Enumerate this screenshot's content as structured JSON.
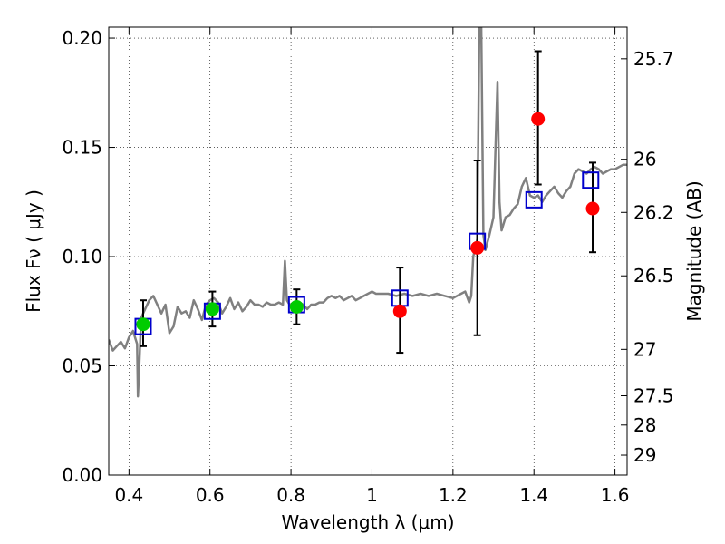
{
  "chart_data": {
    "type": "scatter",
    "xlabel": "Wavelength  λ (μm)",
    "ylabel": "Flux  Fν  ( μJy )",
    "y2label": "Magnitude (AB)",
    "xlim": [
      0.35,
      1.63
    ],
    "ylim": [
      0.0,
      0.205
    ],
    "grid": true,
    "xticks": [
      {
        "value": 0.4,
        "label": "0.4"
      },
      {
        "value": 0.6,
        "label": "0.6"
      },
      {
        "value": 0.8,
        "label": "0.8"
      },
      {
        "value": 1.0,
        "label": "1"
      },
      {
        "value": 1.2,
        "label": "1.2"
      },
      {
        "value": 1.4,
        "label": "1.4"
      },
      {
        "value": 1.6,
        "label": "1.6"
      }
    ],
    "yticks": [
      {
        "value": 0.0,
        "label": "0.00"
      },
      {
        "value": 0.05,
        "label": "0.05"
      },
      {
        "value": 0.1,
        "label": "0.10"
      },
      {
        "value": 0.15,
        "label": "0.15"
      },
      {
        "value": 0.2,
        "label": "0.20"
      }
    ],
    "mag_ticks": [
      {
        "value": 25.7,
        "label": "25.7"
      },
      {
        "value": 26,
        "label": "26"
      },
      {
        "value": 26.2,
        "label": "26.2"
      },
      {
        "value": 26.5,
        "label": "26.5"
      },
      {
        "value": 27,
        "label": "27"
      },
      {
        "value": 27.5,
        "label": "27.5"
      },
      {
        "value": 28,
        "label": "28"
      },
      {
        "value": 29,
        "label": "29"
      }
    ],
    "series": [
      {
        "marker": "circle",
        "color": "#00cc00",
        "points": [
          {
            "x": 0.435,
            "y": 0.069,
            "yerr_low": 0.059,
            "yerr_high": 0.08
          },
          {
            "x": 0.606,
            "y": 0.076,
            "yerr_low": 0.068,
            "yerr_high": 0.084
          },
          {
            "x": 0.814,
            "y": 0.077,
            "yerr_low": 0.069,
            "yerr_high": 0.085
          }
        ]
      },
      {
        "marker": "circle",
        "color": "#ff0000",
        "points": [
          {
            "x": 1.069,
            "y": 0.075,
            "yerr_low": 0.056,
            "yerr_high": 0.095
          },
          {
            "x": 1.26,
            "y": 0.104,
            "yerr_low": 0.064,
            "yerr_high": 0.144
          },
          {
            "x": 1.41,
            "y": 0.163,
            "yerr_low": 0.133,
            "yerr_high": 0.194
          },
          {
            "x": 1.545,
            "y": 0.122,
            "yerr_low": 0.102,
            "yerr_high": 0.143
          }
        ]
      },
      {
        "marker": "open-square",
        "color": "#0000cc",
        "points": [
          {
            "x": 0.435,
            "y": 0.068
          },
          {
            "x": 0.606,
            "y": 0.075
          },
          {
            "x": 0.814,
            "y": 0.078
          },
          {
            "x": 1.069,
            "y": 0.081
          },
          {
            "x": 1.26,
            "y": 0.107
          },
          {
            "x": 1.4,
            "y": 0.126
          },
          {
            "x": 1.54,
            "y": 0.135
          }
        ]
      },
      {
        "marker": "line",
        "color": "#808080",
        "points": [
          [
            0.35,
            0.062
          ],
          [
            0.36,
            0.057
          ],
          [
            0.37,
            0.059
          ],
          [
            0.38,
            0.061
          ],
          [
            0.39,
            0.058
          ],
          [
            0.4,
            0.063
          ],
          [
            0.41,
            0.066
          ],
          [
            0.42,
            0.06
          ],
          [
            0.422,
            0.036
          ],
          [
            0.425,
            0.048
          ],
          [
            0.43,
            0.072
          ],
          [
            0.44,
            0.076
          ],
          [
            0.45,
            0.08
          ],
          [
            0.46,
            0.082
          ],
          [
            0.47,
            0.078
          ],
          [
            0.48,
            0.074
          ],
          [
            0.49,
            0.078
          ],
          [
            0.5,
            0.065
          ],
          [
            0.51,
            0.068
          ],
          [
            0.52,
            0.077
          ],
          [
            0.53,
            0.074
          ],
          [
            0.54,
            0.075
          ],
          [
            0.55,
            0.072
          ],
          [
            0.56,
            0.08
          ],
          [
            0.57,
            0.076
          ],
          [
            0.58,
            0.071
          ],
          [
            0.59,
            0.078
          ],
          [
            0.6,
            0.08
          ],
          [
            0.61,
            0.081
          ],
          [
            0.62,
            0.079
          ],
          [
            0.63,
            0.074
          ],
          [
            0.64,
            0.077
          ],
          [
            0.65,
            0.081
          ],
          [
            0.66,
            0.076
          ],
          [
            0.67,
            0.079
          ],
          [
            0.68,
            0.075
          ],
          [
            0.69,
            0.077
          ],
          [
            0.7,
            0.08
          ],
          [
            0.71,
            0.078
          ],
          [
            0.72,
            0.078
          ],
          [
            0.73,
            0.077
          ],
          [
            0.74,
            0.079
          ],
          [
            0.75,
            0.078
          ],
          [
            0.76,
            0.078
          ],
          [
            0.77,
            0.079
          ],
          [
            0.78,
            0.078
          ],
          [
            0.785,
            0.098
          ],
          [
            0.79,
            0.08
          ],
          [
            0.8,
            0.077
          ],
          [
            0.81,
            0.078
          ],
          [
            0.82,
            0.079
          ],
          [
            0.83,
            0.078
          ],
          [
            0.84,
            0.076
          ],
          [
            0.85,
            0.078
          ],
          [
            0.86,
            0.078
          ],
          [
            0.87,
            0.079
          ],
          [
            0.88,
            0.079
          ],
          [
            0.89,
            0.081
          ],
          [
            0.9,
            0.082
          ],
          [
            0.91,
            0.081
          ],
          [
            0.92,
            0.082
          ],
          [
            0.93,
            0.08
          ],
          [
            0.94,
            0.081
          ],
          [
            0.95,
            0.082
          ],
          [
            0.96,
            0.08
          ],
          [
            0.97,
            0.081
          ],
          [
            0.98,
            0.082
          ],
          [
            0.99,
            0.083
          ],
          [
            1.0,
            0.084
          ],
          [
            1.01,
            0.083
          ],
          [
            1.02,
            0.083
          ],
          [
            1.04,
            0.083
          ],
          [
            1.06,
            0.082
          ],
          [
            1.08,
            0.083
          ],
          [
            1.1,
            0.082
          ],
          [
            1.12,
            0.083
          ],
          [
            1.14,
            0.082
          ],
          [
            1.16,
            0.083
          ],
          [
            1.18,
            0.082
          ],
          [
            1.2,
            0.081
          ],
          [
            1.22,
            0.083
          ],
          [
            1.23,
            0.084
          ],
          [
            1.24,
            0.079
          ],
          [
            1.245,
            0.082
          ],
          [
            1.25,
            0.1
          ],
          [
            1.26,
            0.108
          ],
          [
            1.265,
            0.205
          ],
          [
            1.27,
            0.205
          ],
          [
            1.275,
            0.11
          ],
          [
            1.28,
            0.103
          ],
          [
            1.29,
            0.11
          ],
          [
            1.3,
            0.118
          ],
          [
            1.305,
            0.15
          ],
          [
            1.31,
            0.18
          ],
          [
            1.315,
            0.125
          ],
          [
            1.32,
            0.112
          ],
          [
            1.33,
            0.118
          ],
          [
            1.34,
            0.119
          ],
          [
            1.35,
            0.122
          ],
          [
            1.36,
            0.124
          ],
          [
            1.37,
            0.132
          ],
          [
            1.38,
            0.136
          ],
          [
            1.39,
            0.128
          ],
          [
            1.4,
            0.127
          ],
          [
            1.41,
            0.128
          ],
          [
            1.42,
            0.125
          ],
          [
            1.43,
            0.128
          ],
          [
            1.44,
            0.13
          ],
          [
            1.45,
            0.132
          ],
          [
            1.46,
            0.129
          ],
          [
            1.47,
            0.127
          ],
          [
            1.48,
            0.13
          ],
          [
            1.49,
            0.132
          ],
          [
            1.5,
            0.138
          ],
          [
            1.51,
            0.14
          ],
          [
            1.52,
            0.139
          ],
          [
            1.53,
            0.138
          ],
          [
            1.54,
            0.14
          ],
          [
            1.55,
            0.141
          ],
          [
            1.56,
            0.14
          ],
          [
            1.57,
            0.138
          ],
          [
            1.58,
            0.139
          ],
          [
            1.59,
            0.14
          ],
          [
            1.6,
            0.14
          ],
          [
            1.61,
            0.141
          ],
          [
            1.62,
            0.142
          ],
          [
            1.63,
            0.142
          ]
        ]
      }
    ]
  }
}
